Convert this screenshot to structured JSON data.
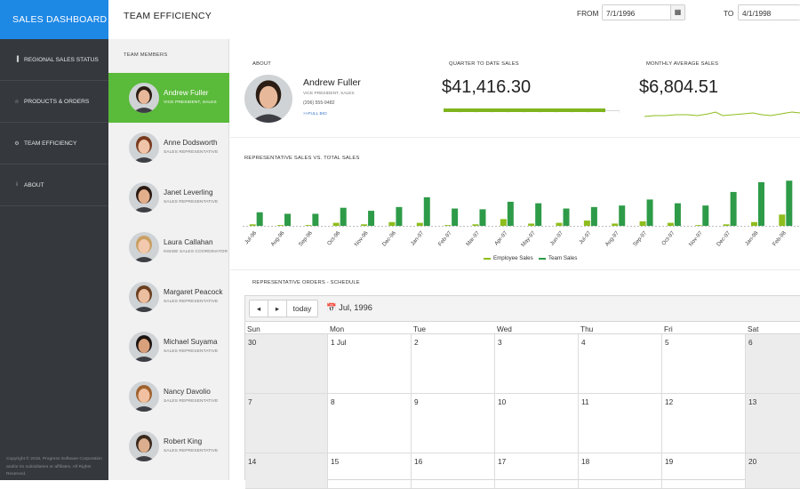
{
  "brand": "SALES DASHBOARD",
  "nav": [
    {
      "label": "REGIONAL SALES STATUS",
      "icon": "bar-chart-icon",
      "glyph": "▐"
    },
    {
      "label": "PRODUCTS & ORDERS",
      "icon": "star-icon",
      "glyph": "☆"
    },
    {
      "label": "TEAM EFFICIENCY",
      "icon": "gear-icon",
      "glyph": "⚙"
    },
    {
      "label": "ABOUT",
      "icon": "info-icon",
      "glyph": "i"
    }
  ],
  "copyright": "Copyright © 2016, Progress Software Corporation and/or its subsidiaries or affiliates. All Rights Reserved.",
  "header": {
    "title": "TEAM EFFICIENCY",
    "from_label": "FROM",
    "from_value": "7/1/1996",
    "to_label": "TO",
    "to_value": "4/1/1998"
  },
  "members": {
    "title": "TEAM MEMBERS",
    "items": [
      {
        "name": "Andrew Fuller",
        "title": "VICE PRESIDENT, SALES",
        "active": true
      },
      {
        "name": "Anne Dodsworth",
        "title": "SALES REPRESENTATIVE",
        "active": false
      },
      {
        "name": "Janet Leverling",
        "title": "SALES REPRESENTATIVE",
        "active": false
      },
      {
        "name": "Laura Callahan",
        "title": "INSIDE SALES COORDINATOR",
        "active": false
      },
      {
        "name": "Margaret Peacock",
        "title": "SALES REPRESENTATIVE",
        "active": false
      },
      {
        "name": "Michael Suyama",
        "title": "SALES REPRESENTATIVE",
        "active": false
      },
      {
        "name": "Nancy Davolio",
        "title": "SALES REPRESENTATIVE",
        "active": false
      },
      {
        "name": "Robert King",
        "title": "SALES REPRESENTATIVE",
        "active": false
      }
    ]
  },
  "about": {
    "label": "ABOUT",
    "name": "Andrew Fuller",
    "title": "VICE PRESIDENT, SALES",
    "phone": "(206) 555-9482",
    "link": ">>FULL BIO"
  },
  "qtd": {
    "label": "QUARTER TO DATE SALES",
    "value": "$41,416.30",
    "progress": 0.92
  },
  "monthly": {
    "label": "MONTHLY AVERAGE SALES",
    "value": "$6,804.51"
  },
  "chart_data": {
    "type": "bar",
    "title": "REPRESENTATIVE SALES VS. TOTAL SALES",
    "categories": [
      "Jul-96",
      "Aug-96",
      "Sep-96",
      "Oct-96",
      "Nov-96",
      "Dec-96",
      "Jan-97",
      "Feb-97",
      "Mar-97",
      "Apr-97",
      "May-97",
      "Jun-97",
      "Jul-97",
      "Aug-97",
      "Sep-97",
      "Oct-97",
      "Nov-97",
      "Dec-97",
      "Jan-98",
      "Feb-98"
    ],
    "series": [
      {
        "name": "Employee Sales",
        "color": "#8ebd1c",
        "values": [
          2,
          1,
          1,
          4,
          2,
          5,
          4,
          1,
          2,
          9,
          3,
          4,
          7,
          3,
          6,
          4,
          1,
          2,
          5,
          15
        ]
      },
      {
        "name": "Team Sales",
        "color": "#2e9b48",
        "values": [
          18,
          16,
          16,
          24,
          20,
          25,
          38,
          23,
          22,
          32,
          30,
          23,
          25,
          27,
          35,
          30,
          27,
          45,
          58,
          60
        ]
      }
    ],
    "ylim": [
      0,
      65
    ],
    "legend": "bottom"
  },
  "scheduler": {
    "label": "REPRESENTATIVE ORDERS - SCHEDULE",
    "prev": "◂",
    "next": "▸",
    "today": "today",
    "date": "Jul, 1996",
    "days": [
      "Sun",
      "Mon",
      "Tue",
      "Wed",
      "Thu",
      "Fri",
      "Sat"
    ],
    "weeks": [
      [
        "30",
        "1 Jul",
        "2",
        "3",
        "4",
        "5",
        "6"
      ],
      [
        "7",
        "8",
        "9",
        "10",
        "11",
        "12",
        "13"
      ],
      [
        "14",
        "15",
        "16",
        "17",
        "18",
        "19",
        "20"
      ]
    ]
  }
}
